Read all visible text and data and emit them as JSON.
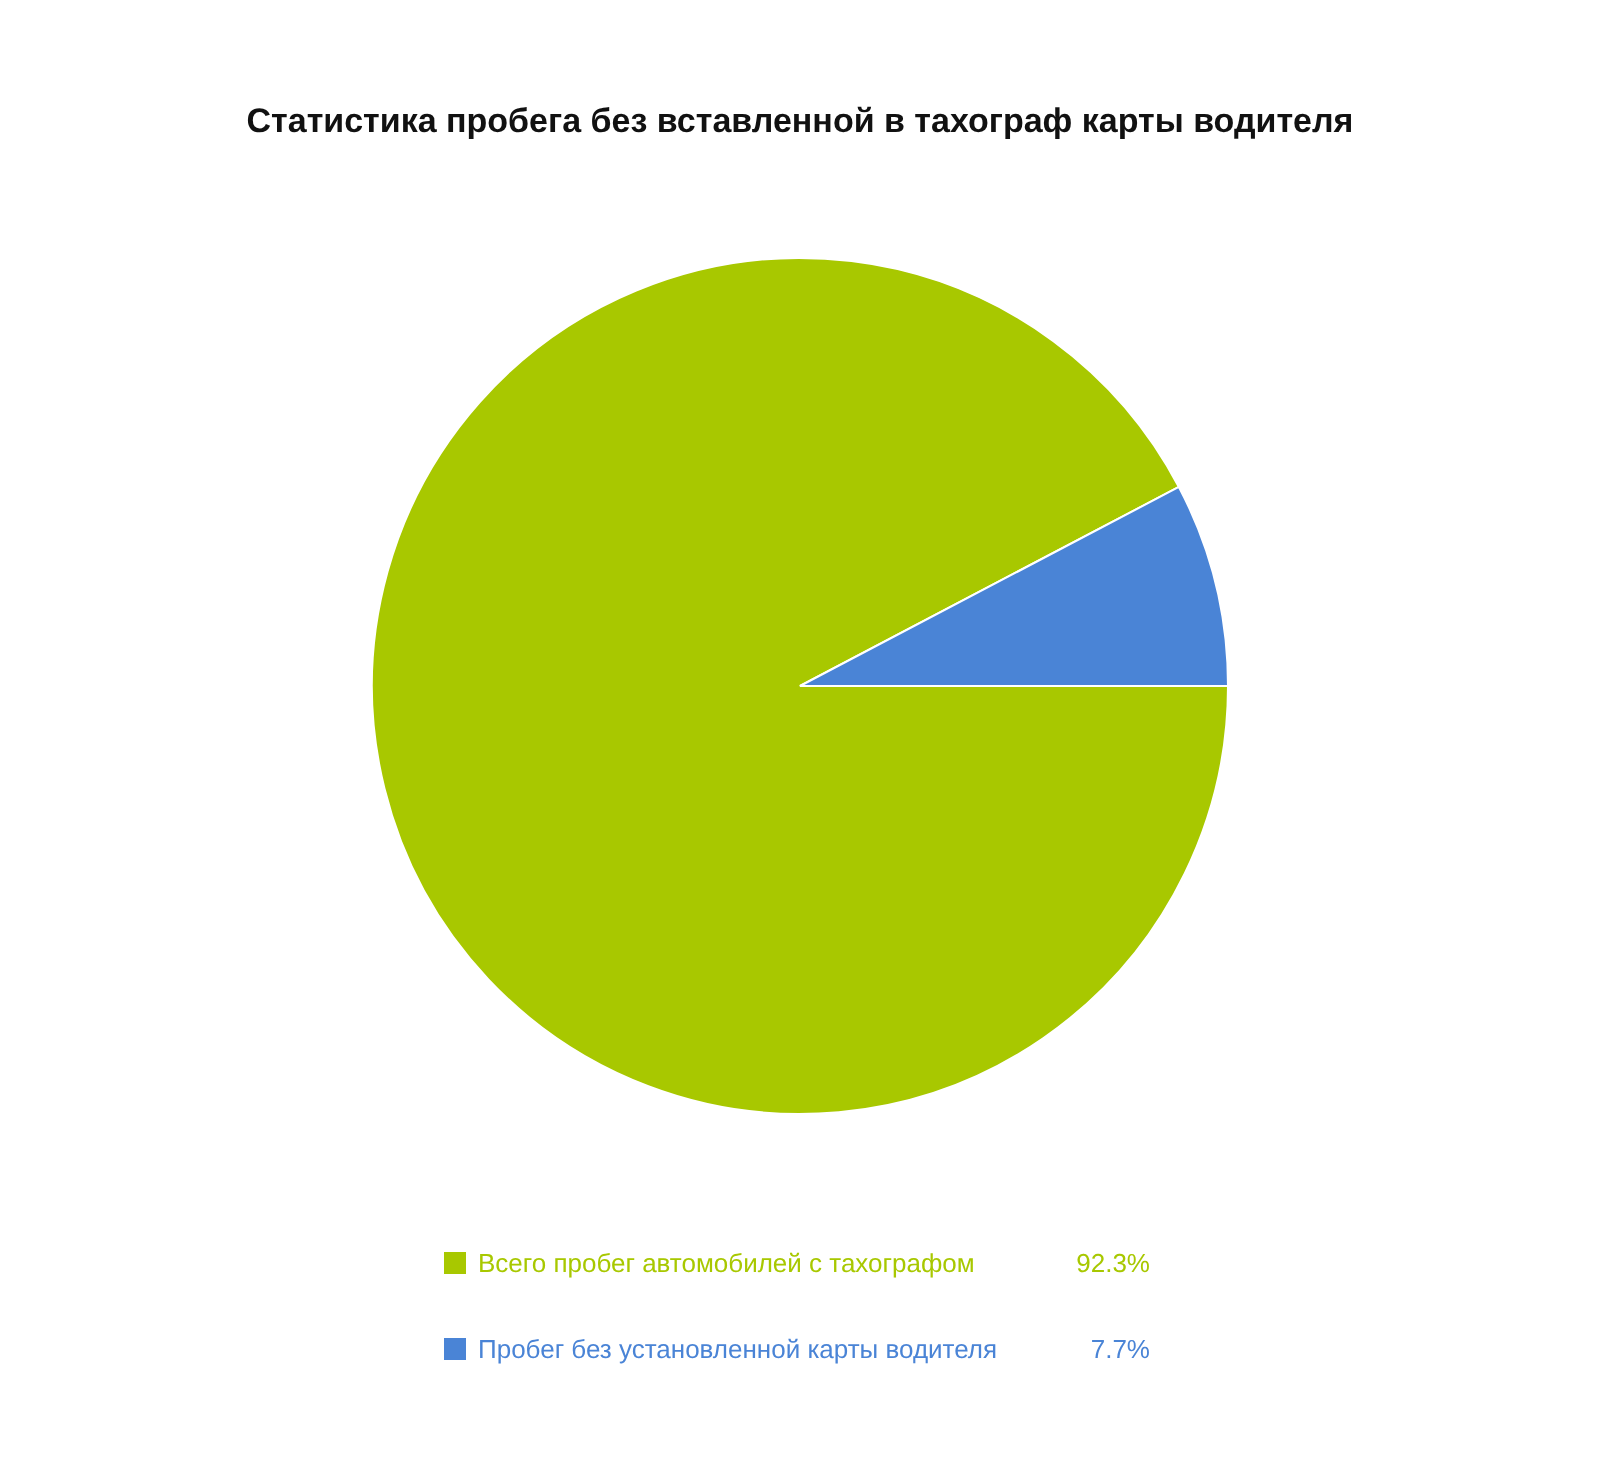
{
  "chart_data": {
    "type": "pie",
    "title": "Статистика пробега без вставленной в тахограф карты водителя",
    "categories": [
      "Всего пробег автомобилей с тахографом",
      "Пробег без установленной карты водителя"
    ],
    "values": [
      92.3,
      7.7
    ],
    "colors": [
      "#a8c800",
      "#4a84d6"
    ],
    "value_labels": [
      "92.3%",
      "7.7%"
    ],
    "legend": "bottom"
  }
}
